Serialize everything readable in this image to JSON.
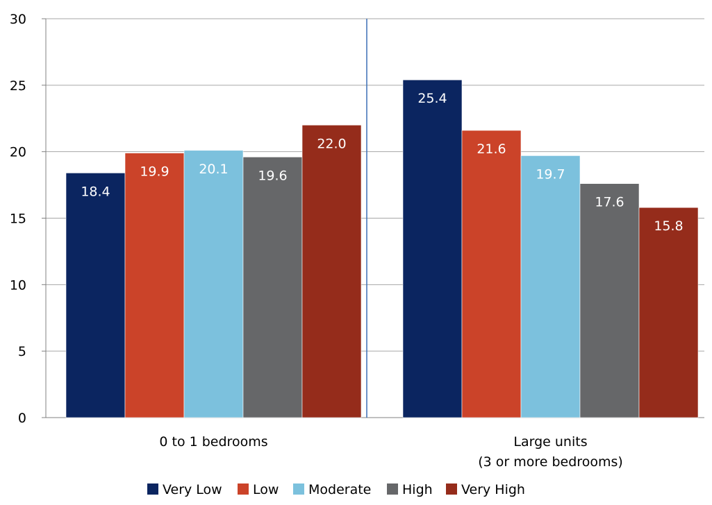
{
  "chart_data": {
    "type": "bar",
    "categories": [
      "0 to 1 bedrooms",
      "Large units\n(3 or more bedrooms)"
    ],
    "series": [
      {
        "name": "Very Low",
        "color": "#0b2560",
        "values": [
          18.4,
          25.4
        ],
        "labels": [
          "18.4",
          "25.4"
        ]
      },
      {
        "name": "Low",
        "color": "#cb4329",
        "values": [
          19.9,
          21.6
        ],
        "labels": [
          "19.9",
          "21.6"
        ]
      },
      {
        "name": "Moderate",
        "color": "#7cc1dd",
        "values": [
          20.1,
          19.7
        ],
        "labels": [
          "20.1",
          "19.7"
        ]
      },
      {
        "name": "High",
        "color": "#666769",
        "values": [
          19.6,
          17.6
        ],
        "labels": [
          "19.6",
          "17.6"
        ]
      },
      {
        "name": "Very High",
        "color": "#952c1b",
        "values": [
          22.0,
          15.8
        ],
        "labels": [
          "22.0",
          "15.8"
        ]
      }
    ],
    "ylim": [
      0,
      30
    ],
    "yticks": [
      0,
      5,
      10,
      15,
      20,
      25,
      30
    ],
    "grid": true,
    "legend_position": "bottom",
    "group_divider": true
  }
}
